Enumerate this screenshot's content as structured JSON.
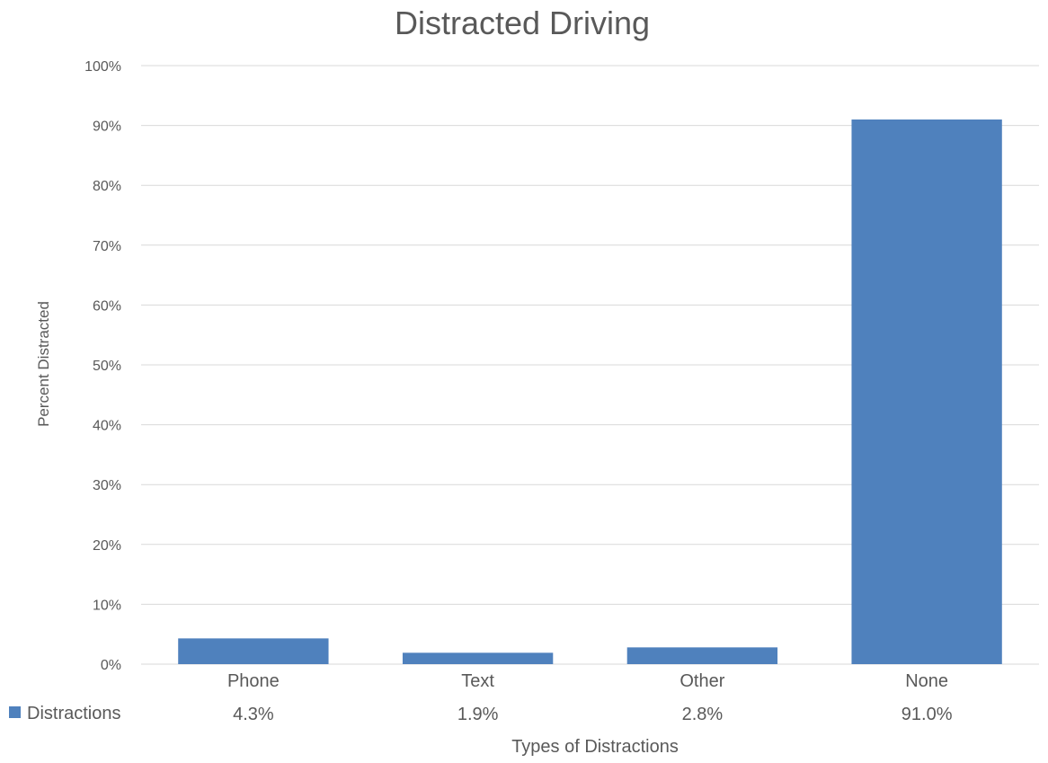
{
  "chart_data": {
    "type": "bar",
    "title": "Distracted Driving",
    "xlabel": "Types of Distractions",
    "ylabel": "Percent Distracted",
    "categories": [
      "Phone",
      "Text",
      "Other",
      "None"
    ],
    "series": [
      {
        "name": "Distractions",
        "values": [
          4.3,
          1.9,
          2.8,
          91.0
        ],
        "value_labels": [
          "4.3%",
          "1.9%",
          "2.8%",
          "91.0%"
        ]
      }
    ],
    "ylim": [
      0,
      100
    ],
    "yticks": [
      0,
      10,
      20,
      30,
      40,
      50,
      60,
      70,
      80,
      90,
      100
    ],
    "ytick_labels": [
      "0%",
      "10%",
      "20%",
      "30%",
      "40%",
      "50%",
      "60%",
      "70%",
      "80%",
      "90%",
      "100%"
    ],
    "grid": true,
    "legend": "data-table-below",
    "colors": {
      "bar": "#4F81BD",
      "grid": "#D9D9D9",
      "text": "#595959",
      "title": "#595959"
    }
  }
}
